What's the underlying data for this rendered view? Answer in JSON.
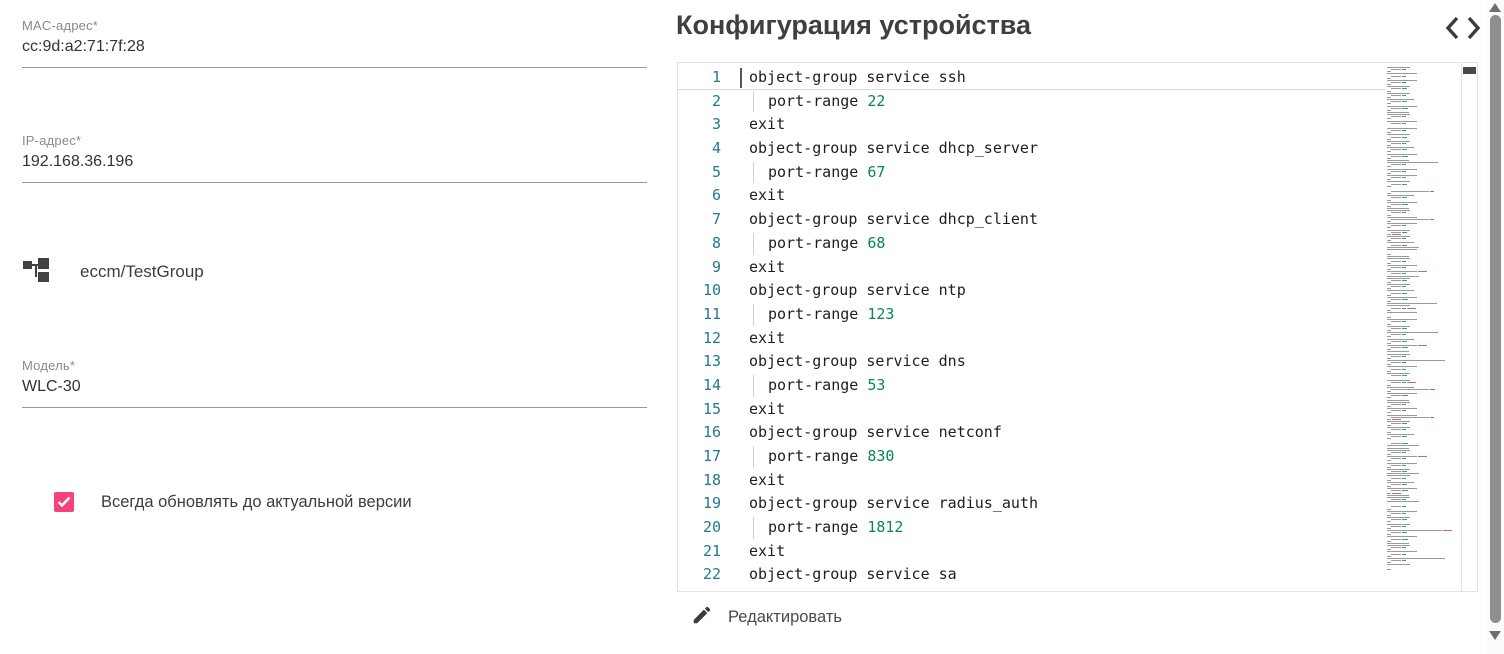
{
  "form": {
    "mac": {
      "label": "MAC-адрес*",
      "value": "cc:9d:a2:71:7f:28"
    },
    "ip": {
      "label": "IP-адрес*",
      "value": "192.168.36.196"
    },
    "group": {
      "value": "eccm/TestGroup"
    },
    "model": {
      "label": "Модель*",
      "value": "WLC-30"
    },
    "auto_update": {
      "label": "Всегда обновлять до актуальной версии",
      "checked": true
    }
  },
  "config_panel": {
    "title": "Конфигурация устройства",
    "edit_button_label": "Редактировать"
  },
  "editor": {
    "lines": [
      {
        "n": "1",
        "code": "object-group service ssh",
        "current": true
      },
      {
        "n": "2",
        "code": "port-range",
        "num": "22",
        "indent": true
      },
      {
        "n": "3",
        "code": "exit"
      },
      {
        "n": "4",
        "code": "object-group service dhcp_server"
      },
      {
        "n": "5",
        "code": "port-range",
        "num": "67",
        "indent": true
      },
      {
        "n": "6",
        "code": "exit"
      },
      {
        "n": "7",
        "code": "object-group service dhcp_client"
      },
      {
        "n": "8",
        "code": "port-range",
        "num": "68",
        "indent": true
      },
      {
        "n": "9",
        "code": "exit"
      },
      {
        "n": "10",
        "code": "object-group service ntp"
      },
      {
        "n": "11",
        "code": "port-range",
        "num": "123",
        "indent": true
      },
      {
        "n": "12",
        "code": "exit"
      },
      {
        "n": "13",
        "code": "object-group service dns"
      },
      {
        "n": "14",
        "code": "port-range",
        "num": "53",
        "indent": true
      },
      {
        "n": "15",
        "code": "exit"
      },
      {
        "n": "16",
        "code": "object-group service netconf"
      },
      {
        "n": "17",
        "code": "port-range",
        "num": "830",
        "indent": true
      },
      {
        "n": "18",
        "code": "exit"
      },
      {
        "n": "19",
        "code": "object-group service radius_auth"
      },
      {
        "n": "20",
        "code": "port-range",
        "num": "1812",
        "indent": true
      },
      {
        "n": "21",
        "code": "exit"
      },
      {
        "n": "22",
        "code": "object-group service sa"
      }
    ]
  },
  "colors": {
    "accent_pink": "#f4437a",
    "line_number": "#237893",
    "code_number": "#098658",
    "title_text": "#3f3f3f"
  }
}
